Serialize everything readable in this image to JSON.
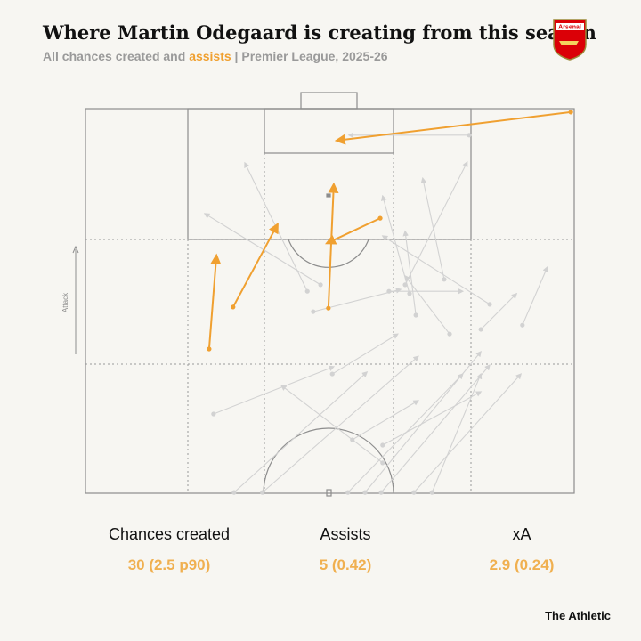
{
  "header": {
    "title": "Where Martin Odegaard is creating from this season",
    "subtitle_start": "All chances created and ",
    "subtitle_highlight": "assists",
    "subtitle_end": " | Premier League, 2025-26",
    "badge": "Arsenal"
  },
  "pitch": {
    "direction_label": "Attack",
    "chance_color": "#d2d2d2",
    "assist_color": "#f0a030",
    "chances": [
      [
        30.4,
        99.8,
        57.6,
        68.5
      ],
      [
        36.2,
        99.8,
        68.1,
        64.4
      ],
      [
        53.7,
        99.8,
        77.2,
        69.0
      ],
      [
        57.2,
        99.8,
        80.9,
        63.2
      ],
      [
        60.5,
        99.8,
        82.7,
        66.7
      ],
      [
        67.2,
        99.8,
        89.1,
        69.0
      ],
      [
        70.9,
        99.8,
        80.9,
        69.0
      ],
      [
        26.2,
        79.4,
        50.8,
        67.1
      ],
      [
        54.6,
        86.1,
        68.1,
        75.9
      ],
      [
        60.8,
        87.5,
        80.9,
        73.6
      ],
      [
        50.5,
        69.0,
        63.9,
        58.6
      ],
      [
        60.8,
        92.1,
        40.1,
        72.0
      ],
      [
        74.5,
        58.6,
        65.4,
        43.5
      ],
      [
        45.4,
        47.5,
        32.6,
        14.1
      ],
      [
        46.6,
        52.8,
        64.5,
        47.0
      ],
      [
        62.1,
        47.5,
        77.2,
        47.5
      ],
      [
        66.3,
        48.1,
        60.8,
        22.7
      ],
      [
        73.4,
        44.4,
        69.0,
        18.1
      ],
      [
        82.7,
        50.9,
        60.8,
        33.1
      ],
      [
        67.6,
        53.7,
        65.4,
        31.9
      ],
      [
        78.5,
        6.9,
        53.9,
        6.9
      ],
      [
        65.4,
        45.8,
        78.1,
        13.9
      ],
      [
        89.4,
        56.3,
        94.5,
        41.2
      ],
      [
        80.9,
        57.4,
        88.2,
        48.1
      ],
      [
        48.1,
        45.8,
        24.4,
        27.3
      ]
    ],
    "assists": [
      [
        99.3,
        0.9,
        51.4,
        8.3
      ],
      [
        49.7,
        51.9,
        50.8,
        19.7
      ],
      [
        60.3,
        28.5,
        49.4,
        35.0
      ],
      [
        30.2,
        51.6,
        39.3,
        30.1
      ],
      [
        25.3,
        62.5,
        26.8,
        38.2
      ]
    ]
  },
  "stats": [
    {
      "label": "Chances created",
      "value": "30 (2.5 p90)"
    },
    {
      "label": "Assists",
      "value": "5 (0.42)"
    },
    {
      "label": "xA",
      "value": "2.9 (0.24)"
    }
  ],
  "footer": {
    "credit": "The Athletic"
  }
}
